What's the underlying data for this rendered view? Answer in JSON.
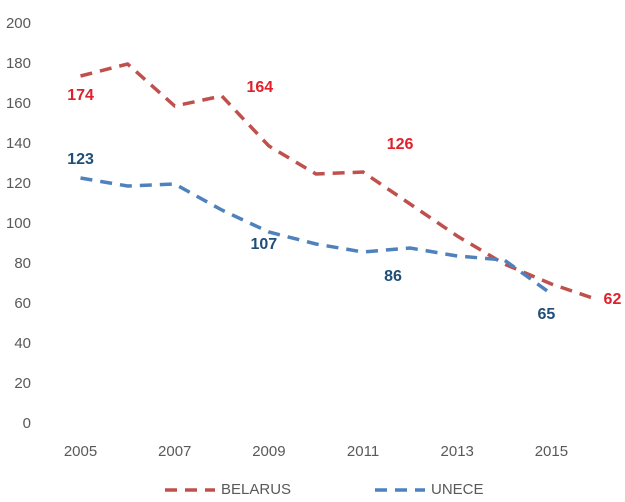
{
  "chart_data": {
    "type": "line",
    "categories": [
      "2005",
      null,
      "2007",
      null,
      "2009",
      null,
      "2011",
      null,
      "2013",
      null,
      "2015",
      null
    ],
    "series": [
      {
        "name": "BELARUS",
        "color": "#c0504d",
        "label_color": "#e0202a",
        "values": [
          174,
          180,
          159,
          164,
          139,
          125,
          126,
          110,
          94,
          80,
          70,
          62
        ],
        "value_labels": [
          "174",
          null,
          null,
          "164",
          null,
          null,
          "126",
          null,
          null,
          null,
          null,
          "62"
        ]
      },
      {
        "name": "UNECE",
        "color": "#4f81bd",
        "label_color": "#1f4e79",
        "values": [
          123,
          119,
          120,
          107,
          96,
          90,
          86,
          88,
          84,
          82,
          65,
          null
        ],
        "value_labels": [
          "123",
          null,
          null,
          "107",
          null,
          null,
          "86",
          null,
          null,
          null,
          "65",
          null
        ]
      }
    ],
    "ylim": [
      0,
      200
    ],
    "yticks": [
      0,
      20,
      40,
      60,
      80,
      100,
      120,
      140,
      160,
      180,
      200
    ],
    "grid": false,
    "legend": "bottom"
  }
}
